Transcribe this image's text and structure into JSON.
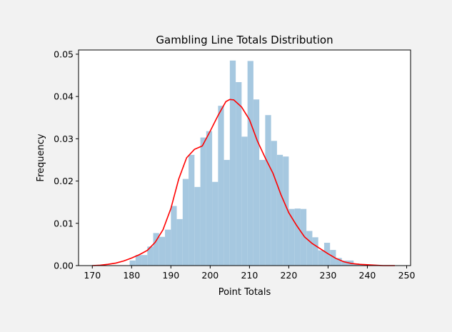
{
  "chart_data": {
    "type": "bar",
    "title": "Gambling Line Totals Distribution",
    "xlabel": "Point Totals",
    "ylabel": "Frequency",
    "xlim": [
      166.5,
      251
    ],
    "ylim": [
      0,
      0.051
    ],
    "grid": false,
    "legend": "none",
    "x_ticks": [
      170,
      180,
      190,
      200,
      210,
      220,
      230,
      240,
      250
    ],
    "y_ticks": [
      0.0,
      0.01,
      0.02,
      0.03,
      0.04,
      0.05
    ],
    "x_tick_labels": [
      "170",
      "180",
      "190",
      "200",
      "210",
      "220",
      "230",
      "240",
      "250"
    ],
    "y_tick_labels": [
      "0.00",
      "0.01",
      "0.02",
      "0.03",
      "0.04",
      "0.05"
    ],
    "colors": {
      "histogram": "#a6c8e0",
      "kde": "#ff0000"
    },
    "histogram": {
      "bin_width": 1.5,
      "bin_starts": [
        179.5,
        181,
        182.5,
        184,
        185.5,
        187,
        188.5,
        190,
        191.5,
        193,
        194.5,
        196,
        197.5,
        199,
        200.5,
        202,
        203.5,
        205,
        206.5,
        208,
        209.5,
        211,
        212.5,
        214,
        215.5,
        217,
        218.5,
        220,
        221.5,
        223,
        224.5,
        226,
        227.5,
        229,
        230.5,
        232,
        233.5,
        235,
        236.5,
        238,
        239.5
      ],
      "values": [
        0.0012,
        0.0025,
        0.0025,
        0.0045,
        0.0077,
        0.0068,
        0.0085,
        0.0141,
        0.011,
        0.0205,
        0.0262,
        0.0186,
        0.0303,
        0.0318,
        0.0198,
        0.0378,
        0.025,
        0.0485,
        0.0434,
        0.0305,
        0.0484,
        0.0393,
        0.025,
        0.0356,
        0.0295,
        0.0262,
        0.0258,
        0.0134,
        0.0135,
        0.0134,
        0.0082,
        0.0067,
        0.0036,
        0.0054,
        0.0037,
        0.0018,
        0.0012,
        0.0012,
        0.0005,
        0.0003,
        0.0002
      ]
    },
    "kde": {
      "x": [
        170,
        172,
        174,
        176,
        178,
        180,
        182,
        184,
        186,
        188,
        190,
        192,
        194,
        196,
        198,
        200,
        202,
        204,
        205,
        206,
        208,
        210,
        212,
        214,
        216,
        218,
        220,
        222,
        224,
        226,
        228,
        230,
        232,
        234,
        236,
        238,
        240,
        242,
        244,
        246,
        247
      ],
      "y": [
        0.0,
        0.0001,
        0.0003,
        0.0006,
        0.0011,
        0.0018,
        0.0026,
        0.0036,
        0.0055,
        0.0085,
        0.0135,
        0.0205,
        0.0255,
        0.0275,
        0.0283,
        0.0318,
        0.0355,
        0.0388,
        0.0393,
        0.0392,
        0.0375,
        0.0345,
        0.0295,
        0.0255,
        0.0218,
        0.0168,
        0.0125,
        0.0095,
        0.0068,
        0.0052,
        0.004,
        0.0028,
        0.0017,
        0.0009,
        0.0005,
        0.0003,
        0.0002,
        0.0001,
        0.0,
        0.0,
        0.0
      ]
    }
  }
}
